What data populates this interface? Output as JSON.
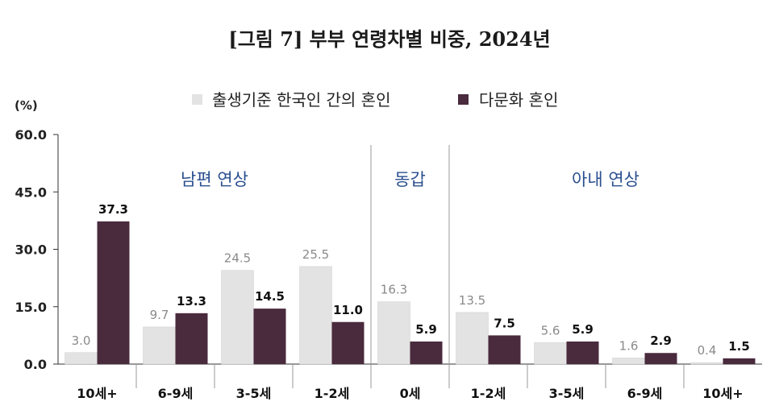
{
  "title": "[그림 7] 부부 연령차별 비중, 2024년",
  "colors": {
    "series_a": "#e3e3e3",
    "series_b": "#4a2a3d",
    "group_label": "#2a4f8f"
  },
  "chart_data": {
    "type": "bar",
    "title": "[그림 7] 부부 연령차별 비중, 2024년",
    "unit_label": "(%)",
    "categories": [
      "10세+",
      "6-9세",
      "3-5세",
      "1-2세",
      "0세",
      "1-2세",
      "3-5세",
      "6-9세",
      "10세+"
    ],
    "series": [
      {
        "name": "출생기준 한국인 간의 혼인",
        "values": [
          3.0,
          9.7,
          24.5,
          25.5,
          16.3,
          13.5,
          5.6,
          1.6,
          0.4
        ]
      },
      {
        "name": "다문화 혼인",
        "values": [
          37.3,
          13.3,
          14.5,
          11.0,
          5.9,
          7.5,
          5.9,
          2.9,
          1.5
        ]
      }
    ],
    "groups": [
      {
        "label": "남편 연상",
        "from": 0,
        "to": 3
      },
      {
        "label": "동갑",
        "from": 4,
        "to": 4
      },
      {
        "label": "아내 연상",
        "from": 5,
        "to": 8
      }
    ],
    "yticks": [
      "0.0",
      "15.0",
      "30.0",
      "45.0",
      "60.0"
    ],
    "ylim": [
      0,
      60
    ],
    "legend_position": "top-center"
  }
}
